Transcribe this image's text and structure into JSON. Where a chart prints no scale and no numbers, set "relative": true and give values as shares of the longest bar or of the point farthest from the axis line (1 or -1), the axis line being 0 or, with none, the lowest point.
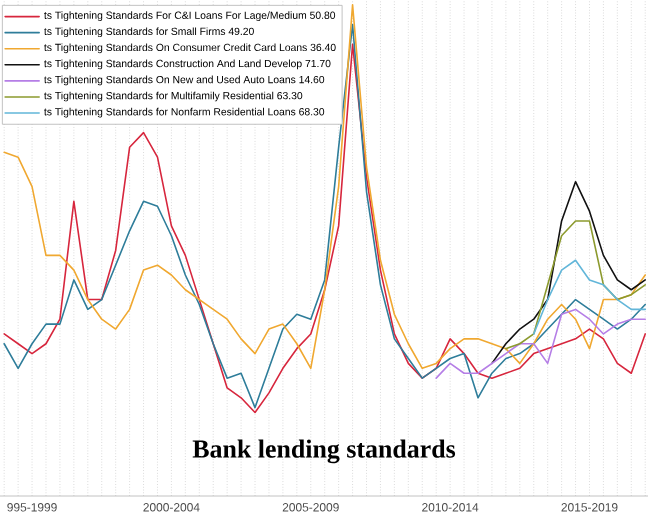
{
  "chart_data": {
    "type": "line",
    "title": "Bank lending standards",
    "relative": true,
    "grid": "x",
    "legend": "top left",
    "marker": "none",
    "line_style": "solid",
    "categories": [
      null,
      null,
      "995-1999",
      null,
      null,
      null,
      null,
      null,
      null,
      null,
      null,
      null,
      "2000-2004",
      null,
      null,
      null,
      null,
      null,
      null,
      null,
      null,
      null,
      "2005-2009",
      null,
      null,
      null,
      null,
      null,
      null,
      null,
      null,
      null,
      "2010-2014",
      null,
      null,
      null,
      null,
      null,
      null,
      null,
      null,
      null,
      "2015-2019",
      null,
      null,
      null,
      null
    ],
    "series": [
      {
        "name": "ts Tightening Standards For C&I Loans For Lage/Medium 50.80",
        "color": "#d7263d",
        "values": [
          0.33,
          0.31,
          0.29,
          0.31,
          0.36,
          0.6,
          0.4,
          0.4,
          0.5,
          0.71,
          0.74,
          0.69,
          0.55,
          0.49,
          0.4,
          0.31,
          0.22,
          0.2,
          0.17,
          0.21,
          0.26,
          0.3,
          0.33,
          0.42,
          0.55,
          0.92,
          0.65,
          0.46,
          0.33,
          0.27,
          0.24,
          0.26,
          0.32,
          0.29,
          0.25,
          0.24,
          0.25,
          0.26,
          0.29,
          0.3,
          0.31,
          0.32,
          0.34,
          0.32,
          0.27,
          0.25,
          0.33
        ]
      },
      {
        "name": "ts Tightening Standards for Small Firms 49.20",
        "color": "#2e7d9a",
        "values": [
          0.31,
          0.26,
          0.31,
          0.35,
          0.35,
          0.44,
          0.38,
          0.4,
          0.47,
          0.54,
          0.6,
          0.59,
          0.53,
          0.45,
          0.39,
          0.31,
          0.24,
          0.25,
          0.18,
          0.26,
          0.34,
          0.37,
          0.36,
          0.44,
          0.71,
          0.96,
          0.62,
          0.43,
          0.32,
          0.28,
          0.24,
          0.26,
          0.28,
          0.29,
          0.2,
          0.25,
          0.28,
          0.29,
          0.31,
          0.34,
          0.37,
          0.4,
          0.38,
          0.36,
          0.34,
          0.36,
          0.39
        ]
      },
      {
        "name": "ts Tightening Standards On Consumer Credit Card Loans 36.40",
        "color": "#f0a830",
        "values": [
          0.7,
          0.69,
          0.63,
          0.49,
          0.49,
          0.46,
          0.4,
          0.36,
          0.34,
          0.38,
          0.46,
          0.47,
          0.45,
          0.42,
          0.4,
          0.38,
          0.36,
          0.32,
          0.29,
          0.34,
          0.35,
          0.31,
          0.26,
          0.42,
          0.63,
          1.0,
          0.67,
          0.48,
          0.37,
          0.31,
          0.26,
          0.27,
          0.3,
          0.32,
          0.32,
          0.31,
          0.3,
          0.27,
          0.31,
          0.36,
          0.39,
          0.36,
          0.3,
          0.4,
          0.4,
          0.41,
          0.45
        ]
      },
      {
        "name": "ts Tightening Standards Construction And Land Develop 71.70",
        "color": "#111111",
        "values": [
          null,
          null,
          null,
          null,
          null,
          null,
          null,
          null,
          null,
          null,
          null,
          null,
          null,
          null,
          null,
          null,
          null,
          null,
          null,
          null,
          null,
          null,
          null,
          null,
          null,
          null,
          null,
          null,
          null,
          null,
          null,
          null,
          null,
          null,
          null,
          0.27,
          0.31,
          0.34,
          0.36,
          0.4,
          0.56,
          0.64,
          0.58,
          0.49,
          0.44,
          0.42,
          0.44
        ]
      },
      {
        "name": "ts Tightening Standards On New and Used Auto Loans 14.60",
        "color": "#b57ee6",
        "values": [
          null,
          null,
          null,
          null,
          null,
          null,
          null,
          null,
          null,
          null,
          null,
          null,
          null,
          null,
          null,
          null,
          null,
          null,
          null,
          null,
          null,
          null,
          null,
          null,
          null,
          null,
          null,
          null,
          null,
          null,
          null,
          0.24,
          0.27,
          0.25,
          0.25,
          0.27,
          0.29,
          0.31,
          0.31,
          0.27,
          0.37,
          0.38,
          0.36,
          0.33,
          0.35,
          0.36,
          0.36
        ]
      },
      {
        "name": "ts Tightening Standards for Multifamily Residential 63.30",
        "color": "#8c9a2e",
        "values": [
          null,
          null,
          null,
          null,
          null,
          null,
          null,
          null,
          null,
          null,
          null,
          null,
          null,
          null,
          null,
          null,
          null,
          null,
          null,
          null,
          null,
          null,
          null,
          null,
          null,
          null,
          null,
          null,
          null,
          null,
          null,
          null,
          null,
          null,
          null,
          null,
          0.3,
          0.31,
          0.33,
          0.43,
          0.53,
          0.56,
          0.56,
          0.43,
          0.4,
          0.41,
          0.43
        ]
      },
      {
        "name": "ts Tightening Standards for Nonfarm Residential Loans 68.30",
        "color": "#62b6d9",
        "values": [
          null,
          null,
          null,
          null,
          null,
          null,
          null,
          null,
          null,
          null,
          null,
          null,
          null,
          null,
          null,
          null,
          null,
          null,
          null,
          null,
          null,
          null,
          null,
          null,
          null,
          null,
          null,
          null,
          null,
          null,
          null,
          null,
          null,
          null,
          null,
          null,
          null,
          null,
          0.33,
          0.4,
          0.46,
          0.48,
          0.44,
          0.43,
          0.4,
          0.38,
          0.38
        ]
      }
    ]
  }
}
